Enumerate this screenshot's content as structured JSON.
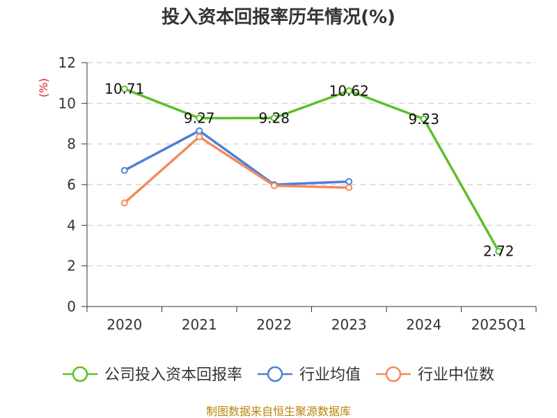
{
  "chart_data": {
    "type": "line",
    "title": "投入资本回报率历年情况(%)",
    "ylabel": "(%)",
    "xlabel": "",
    "categories": [
      "2020",
      "2021",
      "2022",
      "2023",
      "2024",
      "2025Q1"
    ],
    "ylim": [
      0,
      12
    ],
    "yticks": [
      0,
      2,
      4,
      6,
      8,
      10,
      12
    ],
    "grid": true,
    "legend_position": "bottom",
    "series": [
      {
        "name": "公司投入资本回报率",
        "color": "#5cbf2a",
        "values": [
          10.71,
          9.27,
          9.28,
          10.62,
          9.23,
          2.72
        ],
        "labels": [
          "10.71",
          "9.27",
          "9.28",
          "10.62",
          "9.23",
          "2.72"
        ]
      },
      {
        "name": "行业均值",
        "color": "#4e7fd9",
        "values": [
          6.7,
          8.65,
          6.0,
          6.15,
          null,
          null
        ]
      },
      {
        "name": "行业中位数",
        "color": "#f28b5b",
        "values": [
          5.1,
          8.35,
          5.95,
          5.85,
          null,
          null
        ]
      }
    ],
    "source": "制图数据来自恒生聚源数据库"
  }
}
